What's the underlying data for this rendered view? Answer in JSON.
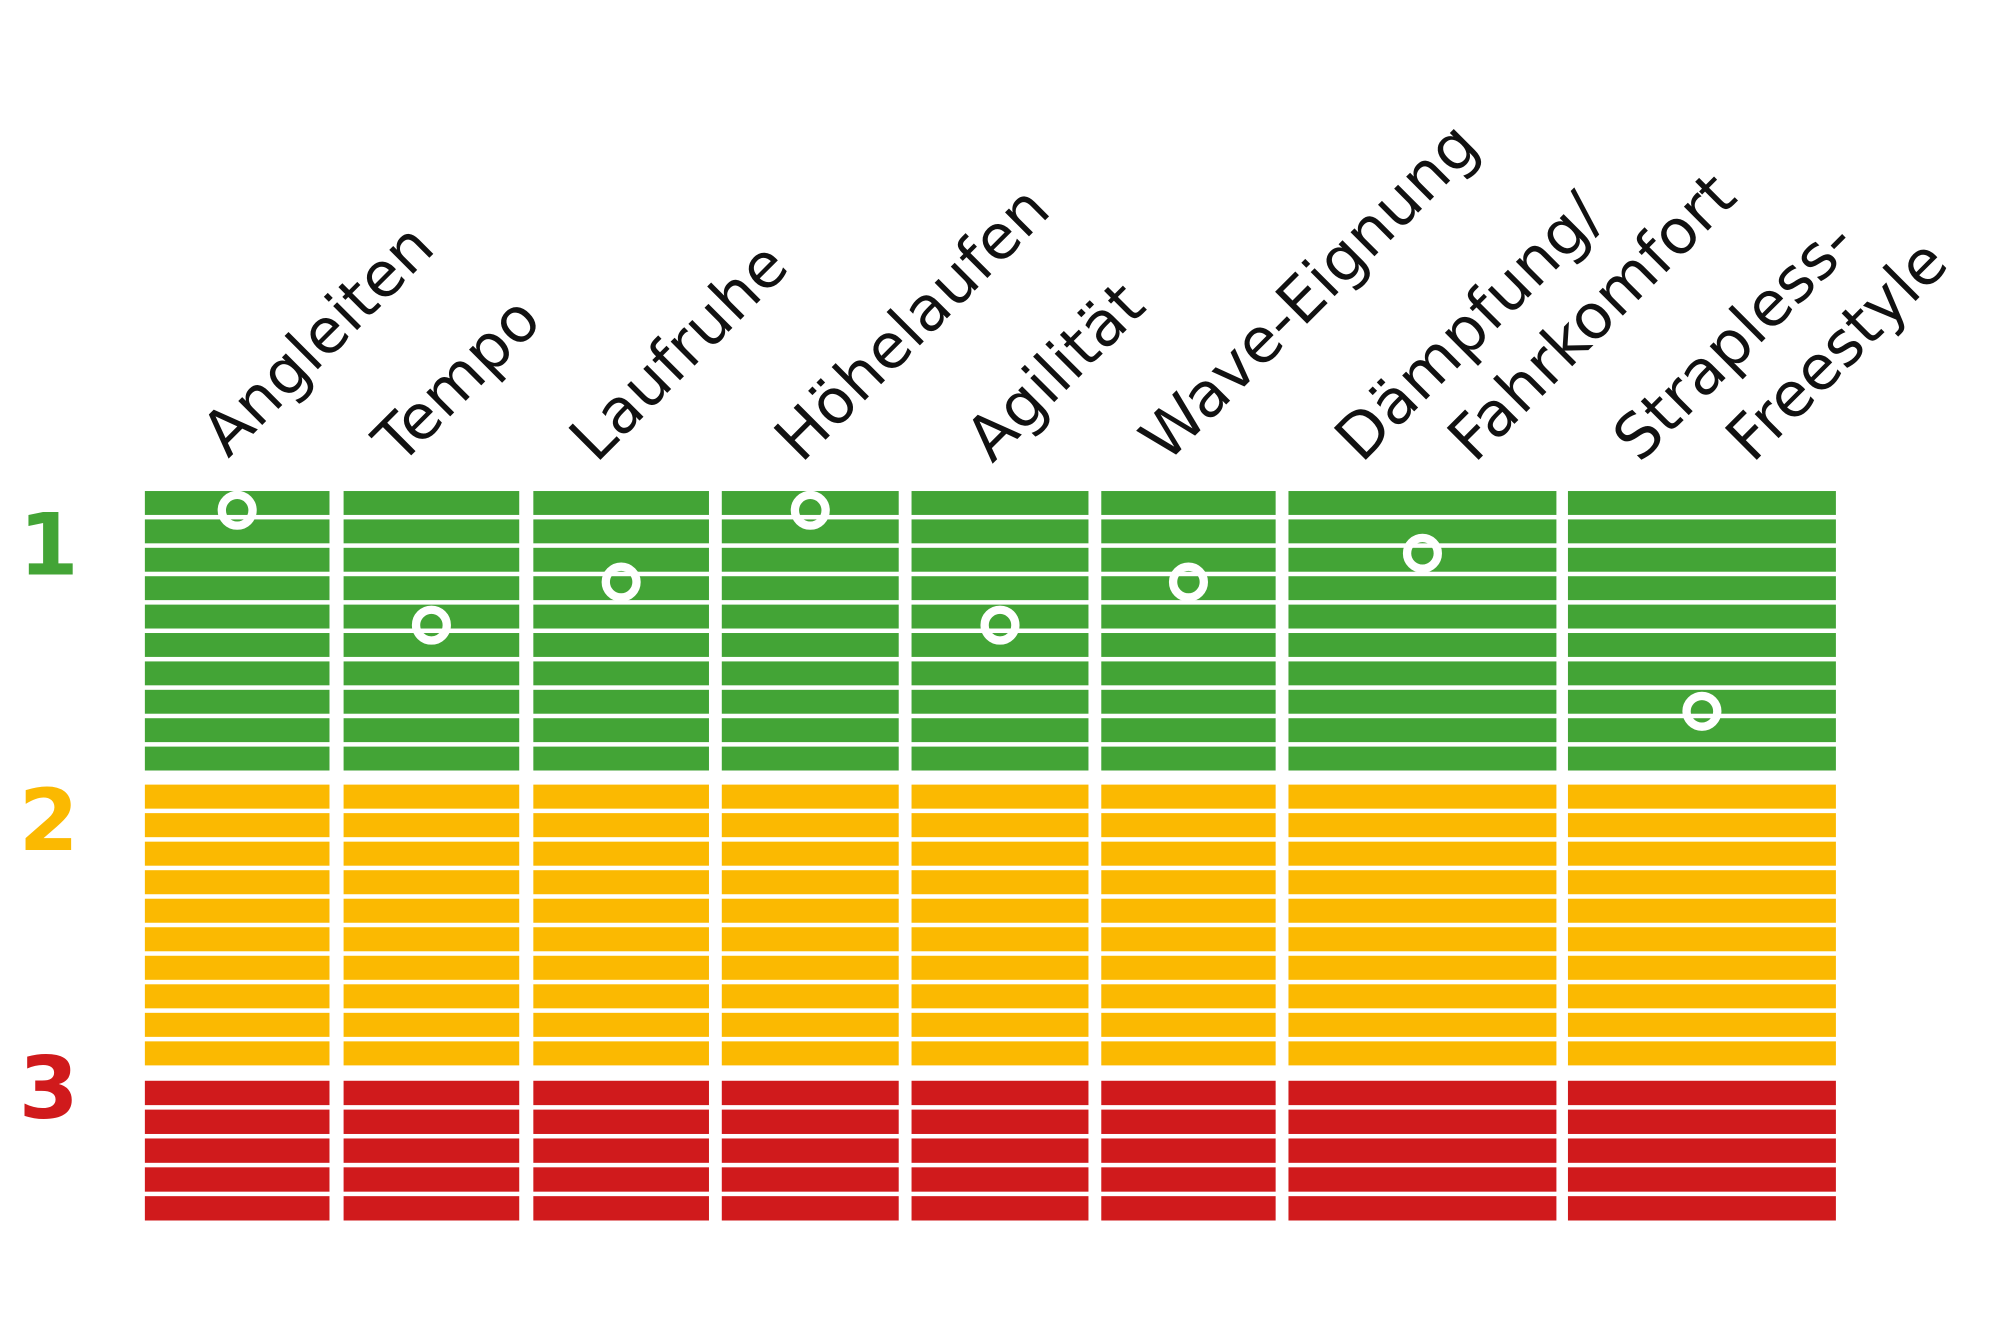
{
  "chart_data": {
    "type": "heatmap",
    "categories": [
      [
        "Angleiten"
      ],
      [
        "Tempo"
      ],
      [
        "Laufruhe"
      ],
      [
        "Höhelaufen"
      ],
      [
        "Agilität"
      ],
      [
        "Wave-Eignung"
      ],
      [
        "Dämpfung/",
        "Fahrkomfort"
      ],
      [
        "Strapless-",
        "Freestyle"
      ]
    ],
    "grades": [
      {
        "label": "1",
        "color": "#43a436",
        "rows": 10
      },
      {
        "label": "2",
        "color": "#fbb901",
        "rows": 10
      },
      {
        "label": "3",
        "color": "#d01a1c",
        "rows": 5
      }
    ],
    "marker_color": "#ffffff",
    "values": [
      1.0,
      1.4,
      1.25,
      1.0,
      1.4,
      1.25,
      1.15,
      1.7
    ],
    "scale": "1 (best) to 3 (worst), continuous",
    "title": "",
    "xlabel": "",
    "ylabel": ""
  }
}
